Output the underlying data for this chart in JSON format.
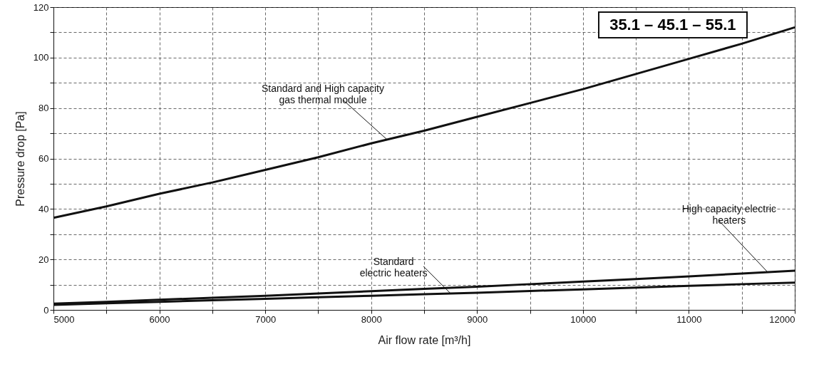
{
  "chart_data": {
    "type": "line",
    "xlabel": "Air flow rate [m³/h]",
    "ylabel": "Pressure drop [Pa]",
    "x": [
      5000,
      5500,
      6000,
      6500,
      7000,
      7500,
      8000,
      8500,
      9000,
      9500,
      10000,
      10500,
      11000,
      11500,
      12000
    ],
    "series": [
      {
        "color": "#111111",
        "values": [
          36.5,
          41,
          46,
          50.5,
          55.5,
          60.5,
          66,
          71,
          76.5,
          82,
          87.5,
          93.5,
          99.5,
          105.5,
          112
        ]
      },
      {
        "color": "#111111",
        "values": [
          2.5,
          3.2,
          4,
          4.8,
          5.6,
          6.5,
          7.4,
          8.3,
          9.2,
          10.2,
          11.2,
          12.2,
          13.3,
          14.4,
          15.5
        ]
      },
      {
        "color": "#111111",
        "values": [
          2,
          2.6,
          3.2,
          3.8,
          4.4,
          5,
          5.6,
          6.2,
          6.8,
          7.5,
          8.1,
          8.8,
          9.5,
          10.2,
          10.8
        ]
      }
    ],
    "xlim": [
      5000,
      12000
    ],
    "xticks": [
      5000,
      {
        "value": 5500,
        "label": null
      },
      6000,
      {
        "value": 6500,
        "label": null
      },
      7000,
      {
        "value": 7500,
        "label": null
      },
      8000,
      {
        "value": 8500,
        "label": null
      },
      9000,
      {
        "value": 9500,
        "label": null
      },
      10000,
      {
        "value": 10500,
        "label": null
      },
      11000,
      {
        "value": 11500,
        "label": null
      },
      12000
    ],
    "ylim": [
      0,
      120
    ],
    "yticks": [
      0,
      {
        "value": 10,
        "label": null
      },
      20,
      {
        "value": 30,
        "label": null
      },
      40,
      {
        "value": 50,
        "label": null
      },
      60,
      {
        "value": 70,
        "label": null
      },
      80,
      {
        "value": 90,
        "label": null
      },
      100,
      {
        "value": 110,
        "label": null
      },
      120
    ],
    "grid": true,
    "marker": "none",
    "line_style": "solid",
    "annotations": [
      {
        "text": "Standard and High capacity\ngas thermal module",
        "x": 8150,
        "y": 67.5
      },
      {
        "text": "High capacity electric\nheaters",
        "x": 11750,
        "y": 14.7
      },
      {
        "text": "Standard\nelectric heaters",
        "x": 8750,
        "y": 6.5
      },
      "35.1 – 45.1 – 55.1"
    ]
  }
}
